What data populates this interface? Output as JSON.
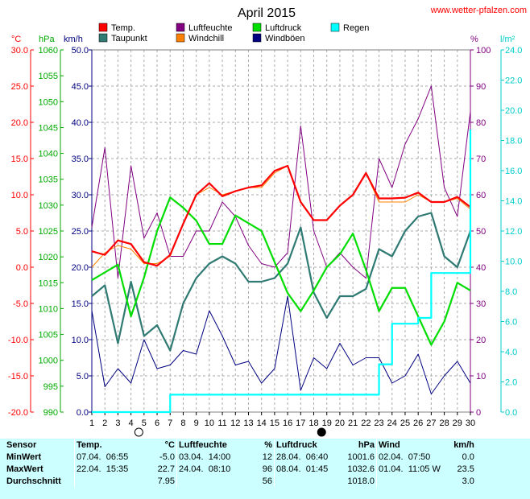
{
  "header": {
    "title": "April 2015",
    "site": "www.wetter-pfalzen.com"
  },
  "legend": [
    {
      "key": "temp",
      "label": "Temp.",
      "color": "#ff0000"
    },
    {
      "key": "dew",
      "label": "Taupunkt",
      "color": "#2f7a73"
    },
    {
      "key": "hum",
      "label": "Luftfeuchte",
      "color": "#800080"
    },
    {
      "key": "windchill",
      "label": "Windchill",
      "color": "#ff8000"
    },
    {
      "key": "pressure",
      "label": "Luftdruck",
      "color": "#00dd00"
    },
    {
      "key": "gust",
      "label": "Windböen",
      "color": "#000080"
    },
    {
      "key": "rain",
      "label": "Regen",
      "color": "#00ffff"
    }
  ],
  "axes": {
    "celsius_label": "°C",
    "hpa_label": "hPa",
    "kmh_label": "km/h",
    "pct_label": "%",
    "lm2_label": "l/m²",
    "celsius_ticks": [
      "30.0",
      "25.0",
      "20.0",
      "15.0",
      "10.0",
      "5.0",
      "0.0",
      "-5.0",
      "-10.0",
      "-15.0",
      "-20.0"
    ],
    "hpa_ticks": [
      "1060",
      "1055",
      "1050",
      "1045",
      "1040",
      "1035",
      "1030",
      "1025",
      "1020",
      "1015",
      "1010",
      "1005",
      "1000",
      "995",
      "990"
    ],
    "kmh_ticks": [
      "50.0",
      "45.0",
      "40.0",
      "35.0",
      "30.0",
      "25.0",
      "20.0",
      "15.0",
      "10.0",
      "5.0",
      "0.0"
    ],
    "pct_ticks": [
      "100",
      "90",
      "80",
      "70",
      "60",
      "50",
      "40",
      "30",
      "20",
      "10",
      "0"
    ],
    "lm2_ticks": [
      "24.0",
      "22.0",
      "20.0",
      "18.0",
      "16.0",
      "14.0",
      "12.0",
      "10.0",
      "8.0",
      "6.0",
      "4.0",
      "2.0",
      "0.0"
    ],
    "x_ticks": [
      "1",
      "2",
      "3",
      "4",
      "5",
      "6",
      "7",
      "8",
      "9",
      "10",
      "11",
      "12",
      "13",
      "14",
      "15",
      "16",
      "17",
      "18",
      "19",
      "20",
      "21",
      "22",
      "23",
      "24",
      "25",
      "26",
      "27",
      "28",
      "29",
      "30"
    ]
  },
  "moon": {
    "full_day": 4.6,
    "new_day": 18.6
  },
  "colors": {
    "grid": "#aaaaaa",
    "celsius": "#ff0000",
    "hpa": "#00aa00",
    "kmh": "#000080",
    "pct": "#800080",
    "lm2": "#00cccc"
  },
  "chart_data": {
    "type": "line",
    "title": "April 2015",
    "x": [
      1,
      2,
      3,
      4,
      5,
      6,
      7,
      8,
      9,
      10,
      11,
      12,
      13,
      14,
      15,
      16,
      17,
      18,
      19,
      20,
      21,
      22,
      23,
      24,
      25,
      26,
      27,
      28,
      29,
      30
    ],
    "xlim": [
      1,
      30
    ],
    "scales": {
      "celsius": [
        -20,
        30
      ],
      "hpa": [
        990,
        1060
      ],
      "kmh": [
        0,
        50
      ],
      "pct": [
        0,
        100
      ],
      "lm2": [
        0,
        25
      ]
    },
    "series": [
      {
        "key": "gust",
        "name": "Windböen",
        "scale": "kmh",
        "color": "#000080",
        "values": [
          14.0,
          3.5,
          6.0,
          4.0,
          10.0,
          6.0,
          6.5,
          8.5,
          8.0,
          14.0,
          10.5,
          6.5,
          7.0,
          4.0,
          6.0,
          16.0,
          3.0,
          7.5,
          6.0,
          9.5,
          6.5,
          7.5,
          7.5,
          4.0,
          5.0,
          8.0,
          2.5,
          5.0,
          7.0,
          4.0
        ]
      },
      {
        "key": "hum",
        "name": "Luftfeuchte",
        "scale": "pct",
        "color": "#800080",
        "values": [
          51,
          73,
          37,
          68,
          48,
          55,
          43,
          43,
          50,
          50,
          58,
          54,
          46,
          41,
          40,
          44,
          79,
          50,
          40,
          44,
          40,
          37,
          70,
          62,
          74,
          81,
          90,
          62,
          54,
          83
        ]
      },
      {
        "key": "dew",
        "name": "Taupunkt",
        "scale": "celsius",
        "color": "#2f7a73",
        "values": [
          -4.0,
          -2.5,
          -10.5,
          -2.0,
          -9.5,
          -8.0,
          -11.5,
          -5.0,
          -1.5,
          0.5,
          1.5,
          0.5,
          -2.0,
          -2.0,
          -1.5,
          0.5,
          5.5,
          -3.5,
          -7.0,
          -4.0,
          -4.0,
          -3.0,
          2.5,
          1.5,
          5.0,
          7.0,
          7.5,
          1.5,
          0.0,
          5.0
        ]
      },
      {
        "key": "pressure",
        "name": "Luftdruck",
        "scale": "hpa",
        "color": "#00dd00",
        "values": [
          1015.5,
          1017.0,
          1018.5,
          1008.5,
          1016.0,
          1025.0,
          1031.5,
          1029.5,
          1027.0,
          1022.5,
          1022.5,
          1028.0,
          1026.5,
          1025.0,
          1019.0,
          1013.0,
          1009.5,
          1013.5,
          1018.0,
          1020.5,
          1024.5,
          1017.5,
          1009.5,
          1014.0,
          1014.0,
          1008.5,
          1003.0,
          1007.5,
          1015.0,
          1013.5
        ]
      },
      {
        "key": "windchill",
        "name": "Windchill",
        "scale": "celsius",
        "color": "#ff8000",
        "values": [
          0.0,
          2.0,
          3.0,
          2.5,
          0.5,
          0.5,
          1.5,
          6.0,
          10.0,
          11.0,
          10.0,
          10.5,
          11.0,
          11.0,
          13.0,
          14.0,
          9.0,
          6.5,
          6.5,
          8.5,
          10.0,
          13.0,
          9.0,
          9.0,
          9.0,
          10.0,
          9.0,
          9.0,
          9.5,
          8.0
        ]
      },
      {
        "key": "temp",
        "name": "Temp.",
        "scale": "celsius",
        "color": "#ff0000",
        "values": [
          2.2,
          1.7,
          3.7,
          3.2,
          0.7,
          0.2,
          1.7,
          6.0,
          10.0,
          11.6,
          9.8,
          10.5,
          11.0,
          11.3,
          13.3,
          14.0,
          9.0,
          6.5,
          6.5,
          8.5,
          10.0,
          13.0,
          9.5,
          9.5,
          9.6,
          10.3,
          9.0,
          9.0,
          9.7,
          8.3
        ]
      },
      {
        "key": "rain",
        "name": "Regen",
        "scale": "lm2",
        "color": "#00ffff",
        "values": [
          0,
          0,
          0,
          0,
          0,
          0,
          1.2,
          1.2,
          1.2,
          1.2,
          1.2,
          1.2,
          1.2,
          1.2,
          1.2,
          1.2,
          1.2,
          1.2,
          1.2,
          1.2,
          1.2,
          1.2,
          3.3,
          6.1,
          6.1,
          6.5,
          9.6,
          9.6,
          9.6,
          19.5
        ]
      }
    ]
  },
  "stats": {
    "headers": {
      "sensor": "Sensor",
      "temp": "Temp.",
      "temp_unit": "°C",
      "hum": "Luftfeuchte",
      "hum_unit": "%",
      "press": "Luftdruck",
      "press_unit": "hPa",
      "wind": "Wind",
      "wind_unit": "km/h"
    },
    "rows": [
      {
        "label": "MinWert",
        "t_date": "07.04.",
        "t_time": "06:55",
        "t_val": "-5.0",
        "h_date": "03.04.",
        "h_time": "14:00",
        "h_val": "12",
        "p_date": "28.04.",
        "p_time": "06:40",
        "p_val": "1001.6",
        "w_date": "02.04.",
        "w_time": "07:50",
        "w_val": "0.0"
      },
      {
        "label": "MaxWert",
        "t_date": "22.04.",
        "t_time": "15:35",
        "t_val": "22.7",
        "h_date": "24.04.",
        "h_time": "08:10",
        "h_val": "96",
        "p_date": "08.04.",
        "p_time": "01:45",
        "p_val": "1032.6",
        "w_date": "01.04.",
        "w_time": "11:05 W",
        "w_val": "23.5"
      },
      {
        "label": "Durchschnitt",
        "t_date": "",
        "t_time": "",
        "t_val": "7.95",
        "h_date": "",
        "h_time": "",
        "h_val": "56",
        "p_date": "",
        "p_time": "",
        "p_val": "1018.0",
        "w_date": "",
        "w_time": "",
        "w_val": "3.0"
      }
    ]
  }
}
